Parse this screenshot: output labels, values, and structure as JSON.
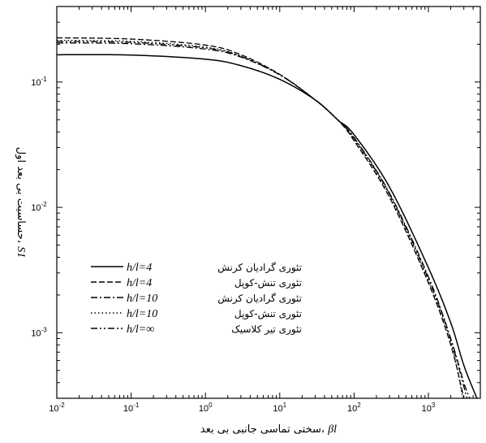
{
  "chart_data": {
    "type": "line",
    "x_scale": "log",
    "y_scale": "log",
    "xlim": [
      0.01,
      5000
    ],
    "ylim": [
      0.0003,
      0.4
    ],
    "xlabel_text": "سختی تماسی جانبی بی بعد، ",
    "xlabel_symbol": "βl",
    "ylabel_text": "حساسیت بی بعد اول، ",
    "ylabel_symbol": "S1",
    "x_ticks": [
      {
        "value": 0.01,
        "base": "10",
        "exp": "-2"
      },
      {
        "value": 0.1,
        "base": "10",
        "exp": "-1"
      },
      {
        "value": 1,
        "base": "10",
        "exp": "0"
      },
      {
        "value": 10,
        "base": "10",
        "exp": "1"
      },
      {
        "value": 100,
        "base": "10",
        "exp": "2"
      },
      {
        "value": 1000,
        "base": "10",
        "exp": "3"
      }
    ],
    "y_ticks": [
      {
        "value": 0.001,
        "base": "10",
        "exp": "-3"
      },
      {
        "value": 0.01,
        "base": "10",
        "exp": "-2"
      },
      {
        "value": 0.1,
        "base": "10",
        "exp": "-1"
      }
    ],
    "legend_position": "bottom-left",
    "series": [
      {
        "name": "تئوری گرادیان کرنش",
        "param": "h/l=4",
        "dash": "solid",
        "x": [
          0.01,
          0.1,
          1,
          3,
          10,
          30,
          60,
          100,
          300,
          1000,
          2000,
          3000,
          4500
        ],
        "y": [
          0.165,
          0.164,
          0.152,
          0.135,
          0.105,
          0.072,
          0.05,
          0.038,
          0.0145,
          0.0033,
          0.0012,
          0.00055,
          0.0003
        ]
      },
      {
        "name": "تئوری تنش-کوپل",
        "param": "h/l=4",
        "dash": "dashed",
        "x": [
          0.01,
          0.1,
          1,
          3,
          10,
          30,
          60,
          100,
          300,
          1000,
          2000,
          3000
        ],
        "y": [
          0.225,
          0.22,
          0.197,
          0.165,
          0.115,
          0.072,
          0.05,
          0.034,
          0.012,
          0.0025,
          0.0008,
          0.0003
        ]
      },
      {
        "name": "تئوری گرادیان کرنش",
        "param": "h/l=10",
        "dash": "dashdot",
        "x": [
          0.01,
          0.1,
          1,
          3,
          10,
          30,
          60,
          100,
          300,
          1000,
          2000,
          3000,
          3600
        ],
        "y": [
          0.205,
          0.202,
          0.183,
          0.158,
          0.114,
          0.072,
          0.05,
          0.036,
          0.013,
          0.0028,
          0.0009,
          0.0004,
          0.0003
        ]
      },
      {
        "name": "تئوری تنش-کوپل",
        "param": "h/l=10",
        "dash": "dotted",
        "x": [
          0.01,
          0.1,
          1,
          3,
          10,
          30,
          60,
          100,
          300,
          1000,
          2000,
          2900
        ],
        "y": [
          0.215,
          0.211,
          0.19,
          0.161,
          0.115,
          0.072,
          0.05,
          0.035,
          0.0125,
          0.0026,
          0.00085,
          0.0003
        ]
      },
      {
        "name": "تئوری تیر کلاسیک",
        "param": "h/l=∞",
        "dash": "dashdotdot",
        "x": [
          0.01,
          0.1,
          1,
          3,
          10,
          30,
          60,
          100,
          300,
          1000,
          2000,
          3300
        ],
        "y": [
          0.211,
          0.207,
          0.187,
          0.16,
          0.114,
          0.072,
          0.05,
          0.0355,
          0.0128,
          0.0027,
          0.00088,
          0.0003
        ]
      }
    ]
  }
}
